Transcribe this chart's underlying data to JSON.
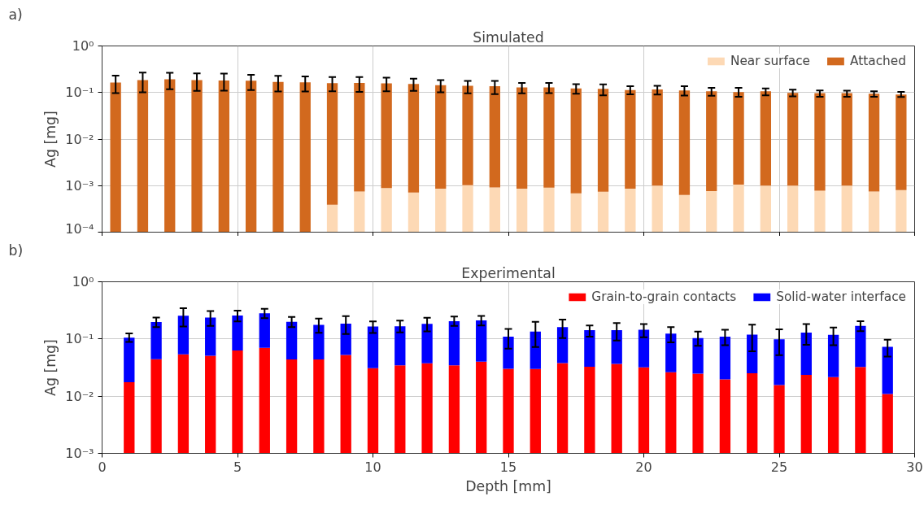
{
  "chart_data": [
    {
      "type": "bar",
      "title": "Simulated",
      "ylabel": "Ag [mg]",
      "annotations": [
        "a)"
      ],
      "stacked": true,
      "log": "y",
      "grid": true,
      "legend": "top right",
      "tick_labels": "y",
      "x": [
        0.5,
        1.5,
        2.5,
        3.5,
        4.5,
        5.5,
        6.5,
        7.5,
        8.5,
        9.5,
        10.5,
        11.5,
        12.5,
        13.5,
        14.5,
        15.5,
        16.5,
        17.5,
        18.5,
        19.5,
        20.5,
        21.5,
        22.5,
        23.5,
        24.5,
        25.5,
        26.5,
        27.5,
        28.5,
        29.5
      ],
      "xlim": [
        0,
        30
      ],
      "xticks": [
        {
          "value": 0,
          "label": null
        },
        {
          "value": 5,
          "label": null
        },
        {
          "value": 10,
          "label": null
        },
        {
          "value": 15,
          "label": null
        },
        {
          "value": 20,
          "label": null
        },
        {
          "value": 25,
          "label": null
        },
        {
          "value": 30,
          "label": null
        }
      ],
      "ylim": [
        0.0001,
        1
      ],
      "yticks": [
        {
          "value": 0.0001,
          "label": "10⁻⁴"
        },
        {
          "value": 0.001,
          "label": "10⁻³"
        },
        {
          "value": 0.01,
          "label": "10⁻²"
        },
        {
          "value": 0.1,
          "label": "10⁻¹"
        },
        {
          "value": 1,
          "label": "10⁰"
        }
      ],
      "series": [
        {
          "name": "Near surface",
          "color": "#fdd9b5",
          "values": [
            null,
            null,
            null,
            null,
            null,
            null,
            null,
            null,
            0.00039,
            0.00075,
            0.00089,
            0.00071,
            0.00086,
            0.00102,
            0.00091,
            0.00086,
            0.0009,
            0.00068,
            0.00074,
            0.00086,
            0.001,
            0.00063,
            0.00076,
            0.00105,
            0.001,
            0.001,
            0.00078,
            0.001,
            0.00075,
            0.0008
          ]
        },
        {
          "name": "Attached",
          "color": "#d2691e",
          "values": [
            0.163,
            0.184,
            0.193,
            0.184,
            0.181,
            0.179,
            0.168,
            0.166,
            0.159,
            0.159,
            0.157,
            0.152,
            0.143,
            0.138,
            0.136,
            0.128,
            0.128,
            0.121,
            0.119,
            0.112,
            0.115,
            0.11,
            0.105,
            0.101,
            0.105,
            0.097,
            0.096,
            0.096,
            0.093,
            0.09
          ],
          "errors": [
            [
              0.097,
              0.231
            ],
            [
              0.101,
              0.269
            ],
            [
              0.118,
              0.265
            ],
            [
              0.108,
              0.257
            ],
            [
              0.11,
              0.254
            ],
            [
              0.113,
              0.239
            ],
            [
              0.105,
              0.228
            ],
            [
              0.105,
              0.221
            ],
            [
              0.106,
              0.214
            ],
            [
              0.103,
              0.214
            ],
            [
              0.106,
              0.208
            ],
            [
              0.108,
              0.199
            ],
            [
              0.101,
              0.184
            ],
            [
              0.096,
              0.178
            ],
            [
              0.092,
              0.178
            ],
            [
              0.096,
              0.161
            ],
            [
              0.097,
              0.161
            ],
            [
              0.094,
              0.151
            ],
            [
              0.087,
              0.149
            ],
            [
              0.091,
              0.136
            ],
            [
              0.09,
              0.14
            ],
            [
              0.086,
              0.136
            ],
            [
              0.085,
              0.126
            ],
            [
              0.081,
              0.126
            ],
            [
              0.087,
              0.122
            ],
            [
              0.083,
              0.115
            ],
            [
              0.081,
              0.111
            ],
            [
              0.081,
              0.109
            ],
            [
              0.081,
              0.106
            ],
            [
              0.08,
              0.103
            ]
          ]
        }
      ]
    },
    {
      "type": "bar",
      "title": "Experimental",
      "xlabel": "Depth [mm]",
      "ylabel": "Ag [mg]",
      "annotations": [
        "b)"
      ],
      "stacked": true,
      "log": "y",
      "grid": true,
      "legend": "top right",
      "x": [
        1,
        2,
        3,
        4,
        5,
        6,
        7,
        8,
        9,
        10,
        11,
        12,
        13,
        14,
        15,
        16,
        17,
        18,
        19,
        20,
        21,
        22,
        23,
        24,
        25,
        26,
        27,
        28,
        29
      ],
      "xlim": [
        0,
        30
      ],
      "xticks": [
        0,
        5,
        10,
        15,
        20,
        25,
        30
      ],
      "ylim": [
        0.001,
        1
      ],
      "yticks": [
        {
          "value": 0.001,
          "label": "10⁻³"
        },
        {
          "value": 0.01,
          "label": "10⁻²"
        },
        {
          "value": 0.1,
          "label": "10⁻¹"
        },
        {
          "value": 1,
          "label": "10⁰"
        }
      ],
      "series": [
        {
          "name": "Grain-to-grain contacts",
          "color": "#ff0000",
          "values": [
            0.0176,
            0.0443,
            0.0538,
            0.0508,
            0.0631,
            0.07,
            0.0438,
            0.0438,
            0.0526,
            0.0308,
            0.0345,
            0.0374,
            0.0345,
            0.0402,
            0.0302,
            0.0299,
            0.038,
            0.0327,
            0.0367,
            0.032,
            0.0261,
            0.0247,
            0.0196,
            0.0252,
            0.0156,
            0.0235,
            0.0215,
            0.0324,
            0.0109
          ]
        },
        {
          "name": "Solid-water interface",
          "color": "#0000ff",
          "values": [
            0.0874,
            0.1537,
            0.2002,
            0.1862,
            0.1939,
            0.212,
            0.1562,
            0.1322,
            0.1324,
            0.1342,
            0.1325,
            0.1456,
            0.1705,
            0.1708,
            0.0798,
            0.1051,
            0.123,
            0.1093,
            0.1053,
            0.113,
            0.0979,
            0.0793,
            0.0904,
            0.0938,
            0.0834,
            0.1055,
            0.0965,
            0.1376,
            0.0621
          ],
          "errors": [
            [
              0.089,
              0.125
            ],
            [
              0.161,
              0.237
            ],
            [
              0.165,
              0.346
            ],
            [
              0.169,
              0.308
            ],
            [
              0.202,
              0.312
            ],
            [
              0.232,
              0.338
            ],
            [
              0.161,
              0.243
            ],
            [
              0.128,
              0.227
            ],
            [
              0.122,
              0.251
            ],
            [
              0.127,
              0.202
            ],
            [
              0.13,
              0.209
            ],
            [
              0.136,
              0.235
            ],
            [
              0.169,
              0.246
            ],
            [
              0.172,
              0.253
            ],
            [
              0.0678,
              0.15
            ],
            [
              0.0725,
              0.199
            ],
            [
              0.104,
              0.218
            ],
            [
              0.11,
              0.172
            ],
            [
              0.094,
              0.19
            ],
            [
              0.107,
              0.182
            ],
            [
              0.087,
              0.161
            ],
            [
              0.076,
              0.135
            ],
            [
              0.078,
              0.145
            ],
            [
              0.061,
              0.178
            ],
            [
              0.052,
              0.147
            ],
            [
              0.079,
              0.182
            ],
            [
              0.078,
              0.159
            ],
            [
              0.137,
              0.204
            ],
            [
              0.049,
              0.097
            ]
          ]
        }
      ]
    }
  ]
}
